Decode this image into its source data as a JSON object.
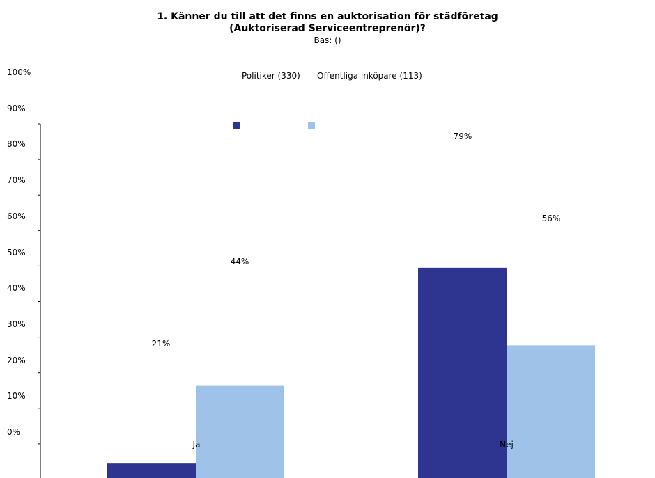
{
  "chart_data": {
    "type": "bar",
    "title": "1. Känner du till att det finns en auktorisation för städföretag (Auktoriserad Serviceentreprenör)?",
    "title_line1": "1. Känner du till att det finns en auktorisation för städföretag",
    "title_line2": "(Auktoriserad Serviceentreprenör)?",
    "subtitle": "Bas: ()",
    "categories": [
      "Ja",
      "Nej"
    ],
    "series": [
      {
        "name": "Politiker (330)",
        "values": [
          21,
          79
        ],
        "color": "#2E3591"
      },
      {
        "name": "Offentliga inköpare (113)",
        "values": [
          44,
          56
        ],
        "color": "#9FC3E8"
      }
    ],
    "data_labels": [
      [
        "21%",
        "79%"
      ],
      [
        "44%",
        "56%"
      ]
    ],
    "y_ticks": [
      "100%",
      "90%",
      "80%",
      "70%",
      "60%",
      "50%",
      "40%",
      "30%",
      "20%",
      "10%",
      "0%"
    ],
    "ylim": [
      0,
      100
    ],
    "legend": "top-center",
    "grid": false
  }
}
